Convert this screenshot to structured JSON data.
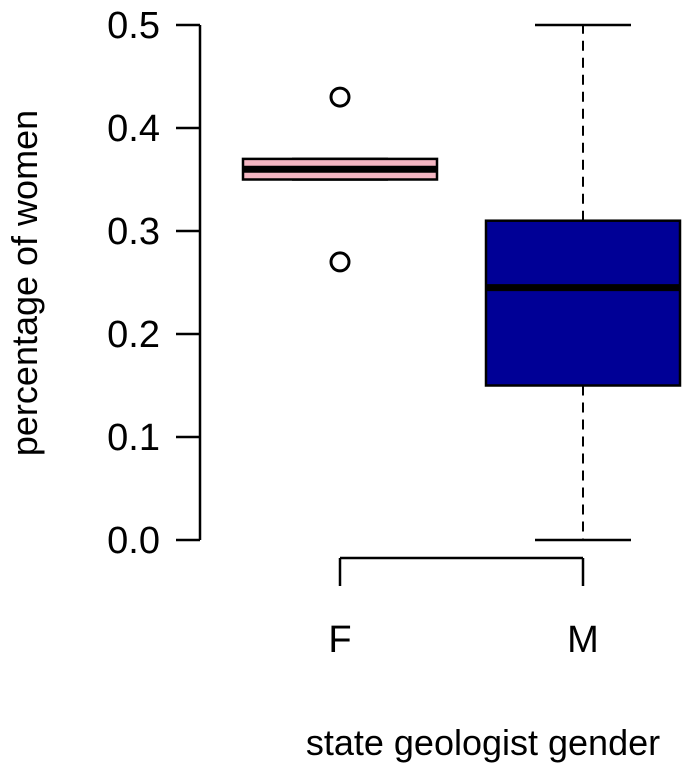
{
  "chart_data": {
    "type": "boxplot",
    "title": "",
    "xlabel": "state geologist gender",
    "ylabel": "percentage of women",
    "ylim": [
      0.0,
      0.5
    ],
    "yticks": [
      "0.0",
      "0.1",
      "0.2",
      "0.3",
      "0.4",
      "0.5"
    ],
    "ytick_values": [
      0.0,
      0.1,
      0.2,
      0.3,
      0.4,
      0.5
    ],
    "categories": [
      "F",
      "M"
    ],
    "boxes": [
      {
        "category": "F",
        "color": "#f4b6c2",
        "whisker_low": 0.35,
        "q1": 0.35,
        "median": 0.36,
        "q3": 0.37,
        "whisker_high": 0.37,
        "outliers": [
          0.43,
          0.27
        ]
      },
      {
        "category": "M",
        "color": "#000096",
        "whisker_low": 0.0,
        "q1": 0.15,
        "median": 0.245,
        "q3": 0.31,
        "whisker_high": 0.5,
        "outliers": []
      }
    ],
    "grid": false,
    "legend": "none"
  }
}
